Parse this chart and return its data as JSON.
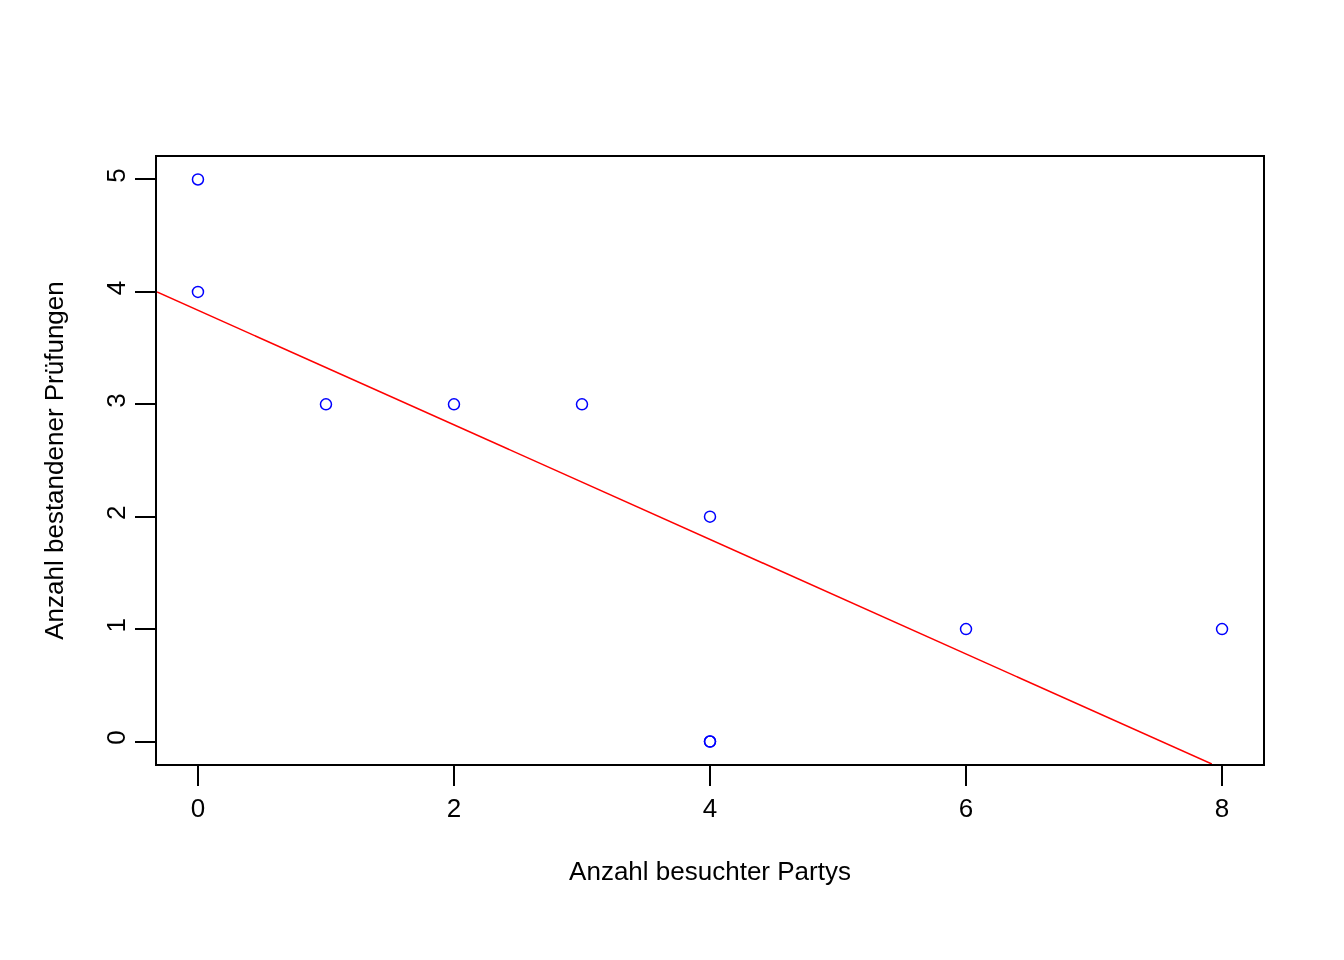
{
  "chart_data": {
    "type": "scatter",
    "xlabel": "Anzahl besuchter Partys",
    "ylabel": "Anzahl bestandener Prüfungen",
    "x": [
      0,
      0,
      1,
      2,
      3,
      4,
      4,
      4,
      6,
      8
    ],
    "series": [
      {
        "color": "#0000ff",
        "marker": "circle",
        "values": [
          5,
          4,
          3,
          3,
          3,
          2,
          0,
          0,
          1,
          1
        ]
      },
      {
        "type": "line",
        "color": "#ff0000",
        "line_style": "solid",
        "x": [
          -0.32,
          7.92
        ],
        "values": [
          4.0,
          -0.2
        ]
      }
    ],
    "xlim": [
      -0.32,
      8.32
    ],
    "xticks": [
      0,
      2,
      4,
      6,
      8
    ],
    "ylim": [
      -0.2,
      5.2
    ],
    "yticks": [
      0,
      1,
      2,
      3,
      4,
      5
    ],
    "grid": false,
    "legend": false
  }
}
